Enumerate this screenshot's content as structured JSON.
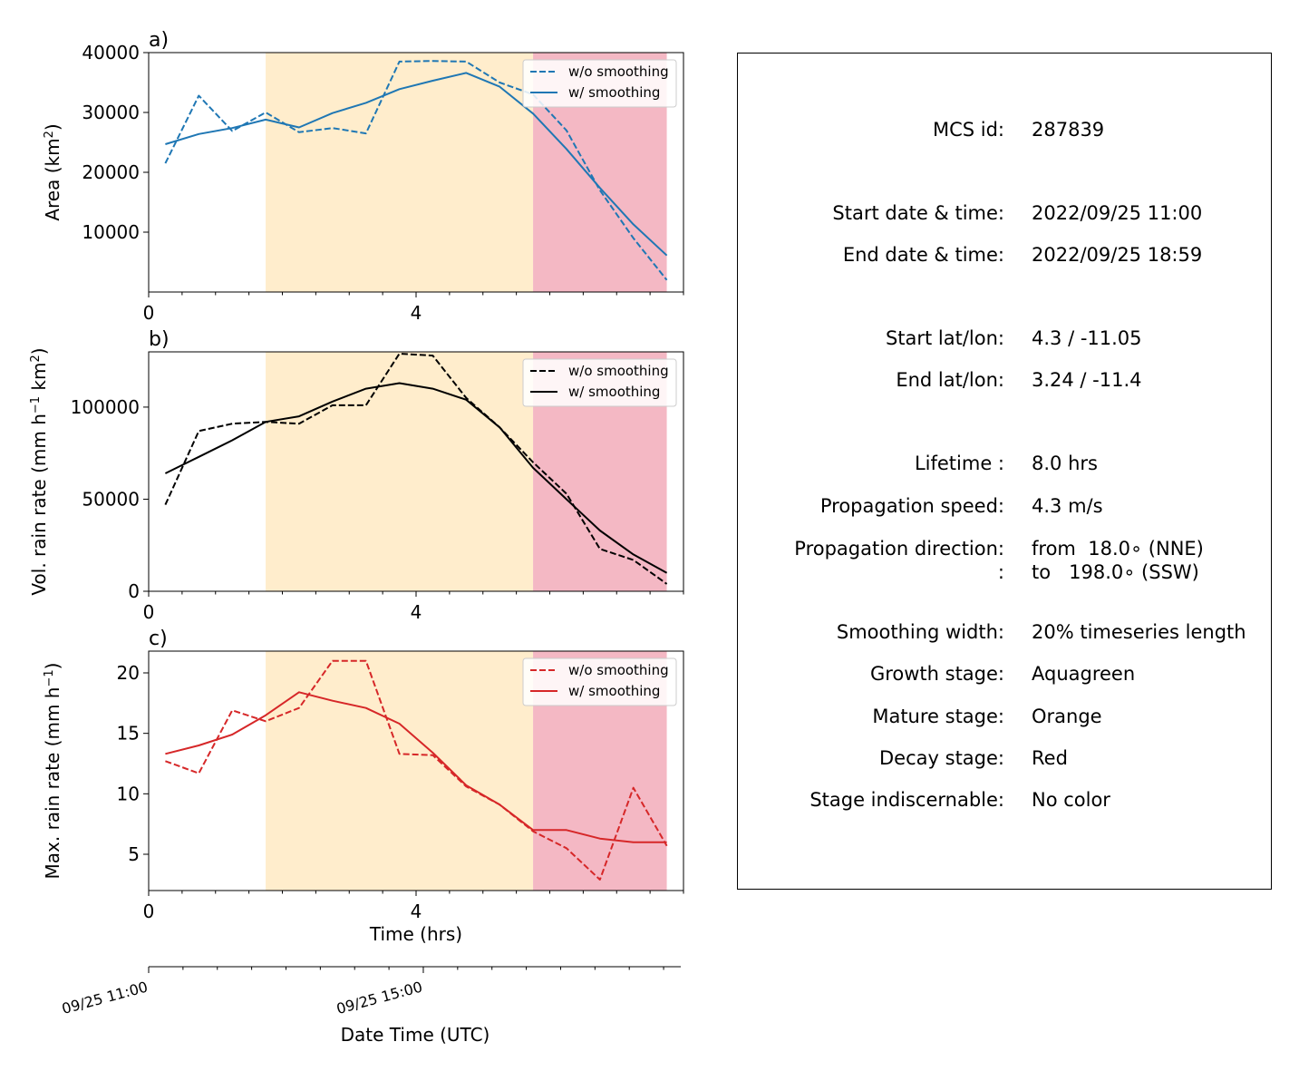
{
  "panels": [
    {
      "panel_label": "a)",
      "ylabel_html": "Area  (km<tspan baseline-shift=\"super\" font-size=\"13\">2</tspan>)",
      "legend": [
        "w/o smoothing",
        "w/ smoothing"
      ],
      "color": "#1f77b4",
      "yticks": [
        10000,
        20000,
        30000,
        40000
      ],
      "ylim": [
        0,
        40000
      ]
    },
    {
      "panel_label": "b)",
      "ylabel_html": "Vol. rain rate (mm h<tspan baseline-shift=\"super\" font-size=\"13\">−1</tspan> km<tspan baseline-shift=\"super\" font-size=\"13\">2</tspan>)",
      "legend": [
        "w/o smoothing",
        "w/ smoothing"
      ],
      "color": "#000000",
      "yticks": [
        0,
        50000,
        100000
      ],
      "ylim": [
        0,
        130000
      ]
    },
    {
      "panel_label": "c)",
      "ylabel_html": "Max. rain rate  (mm h<tspan baseline-shift=\"super\" font-size=\"13\">−1</tspan>)",
      "legend": [
        "w/o smoothing",
        "w/ smoothing"
      ],
      "color": "#d62728",
      "yticks": [
        5,
        10,
        15,
        20
      ],
      "ylim": [
        2,
        21.8
      ]
    }
  ],
  "xaxis": {
    "xlabel": "Time (hrs)",
    "xticks": [
      0,
      4
    ],
    "date_xlabel": "Date Time (UTC)",
    "date_ticks": [
      "09/25 11:00",
      "09/25 15:00"
    ]
  },
  "chart_data": [
    {
      "type": "line",
      "x": [
        0.25,
        0.75,
        1.25,
        1.75,
        2.25,
        2.75,
        3.25,
        3.75,
        4.25,
        4.75,
        5.25,
        5.75,
        6.25,
        6.75,
        7.25,
        7.75
      ],
      "xlim": [
        0,
        8.0
      ],
      "ylim": [
        0,
        40000
      ],
      "series": [
        {
          "name": "w/o smoothing",
          "style": "dashed",
          "values": [
            21500,
            32800,
            26900,
            30000,
            26700,
            27400,
            26500,
            38500,
            38600,
            38500,
            35000,
            33000,
            27000,
            17000,
            9000,
            2000
          ]
        },
        {
          "name": "w/ smoothing",
          "style": "solid",
          "values": [
            24700,
            26400,
            27400,
            28800,
            27500,
            29900,
            31600,
            33900,
            35300,
            36600,
            34300,
            29800,
            23900,
            17400,
            11300,
            6100
          ]
        }
      ],
      "stages": [
        {
          "stage": "mature",
          "start": 1.75,
          "end": 5.75,
          "color": "#ffedcc"
        },
        {
          "stage": "decay",
          "start": 5.75,
          "end": 7.75,
          "color": "#f4b8c4"
        }
      ]
    },
    {
      "type": "line",
      "x": [
        0.25,
        0.75,
        1.25,
        1.75,
        2.25,
        2.75,
        3.25,
        3.75,
        4.25,
        4.75,
        5.25,
        5.75,
        6.25,
        6.75,
        7.25,
        7.75
      ],
      "xlim": [
        0,
        8.0
      ],
      "ylim": [
        0,
        130000
      ],
      "series": [
        {
          "name": "w/o smoothing",
          "style": "dashed",
          "values": [
            47000,
            87000,
            91000,
            92000,
            91000,
            101000,
            101000,
            129000,
            128000,
            105000,
            89000,
            70000,
            53000,
            23000,
            17000,
            4000
          ]
        },
        {
          "name": "w/ smoothing",
          "style": "solid",
          "values": [
            64000,
            73000,
            82000,
            92000,
            95000,
            103000,
            110000,
            113000,
            110000,
            104000,
            89000,
            67000,
            50000,
            33000,
            20000,
            10000
          ]
        }
      ],
      "stages": [
        {
          "stage": "mature",
          "start": 1.75,
          "end": 5.75,
          "color": "#ffedcc"
        },
        {
          "stage": "decay",
          "start": 5.75,
          "end": 7.75,
          "color": "#f4b8c4"
        }
      ]
    },
    {
      "type": "line",
      "x": [
        0.25,
        0.75,
        1.25,
        1.75,
        2.25,
        2.75,
        3.25,
        3.75,
        4.25,
        4.75,
        5.25,
        5.75,
        6.25,
        6.75,
        7.25,
        7.75
      ],
      "xlim": [
        0,
        8.0
      ],
      "ylim": [
        2,
        21.8
      ],
      "series": [
        {
          "name": "w/o smoothing",
          "style": "dashed",
          "values": [
            12.7,
            11.7,
            16.9,
            16.0,
            17.1,
            21.0,
            21.0,
            13.3,
            13.2,
            10.6,
            9.1,
            6.9,
            5.5,
            2.9,
            10.5,
            5.7
          ]
        },
        {
          "name": "w/ smoothing",
          "style": "solid",
          "values": [
            13.3,
            14.0,
            14.9,
            16.5,
            18.4,
            17.7,
            17.1,
            15.8,
            13.4,
            10.7,
            9.1,
            7.0,
            7.0,
            6.3,
            6.0,
            6.0
          ]
        }
      ],
      "stages": [
        {
          "stage": "mature",
          "start": 1.75,
          "end": 5.75,
          "color": "#ffedcc"
        },
        {
          "stage": "decay",
          "start": 5.75,
          "end": 7.75,
          "color": "#f4b8c4"
        }
      ]
    }
  ],
  "info": {
    "rows": [
      {
        "label": "MCS id:",
        "value": "287839"
      },
      {
        "label": "Start date & time:",
        "value": "2022/09/25 11:00"
      },
      {
        "label": "End date & time:",
        "value": "2022/09/25 18:59"
      },
      {
        "label": "Start lat/lon:",
        "value": "4.3 / -11.05"
      },
      {
        "label": "End lat/lon:",
        "value": "3.24 / -11.4"
      },
      {
        "label": "Lifetime :",
        "value": "8.0 hrs"
      },
      {
        "label": "Propagation speed:",
        "value": "4.3 m/s"
      },
      {
        "label": "Propagation direction:",
        "value": "from  18.0∘ (NNE)"
      },
      {
        "label": ":",
        "value": "to   198.0∘ (SSW)"
      },
      {
        "label": "Smoothing width:",
        "value": "20% timeseries length"
      },
      {
        "label": "Growth stage:",
        "value": "Aquagreen"
      },
      {
        "label": "Mature stage:",
        "value": "Orange"
      },
      {
        "label": "Decay stage:",
        "value": "Red"
      },
      {
        "label": "Stage indiscernable:",
        "value": "No color"
      }
    ]
  }
}
